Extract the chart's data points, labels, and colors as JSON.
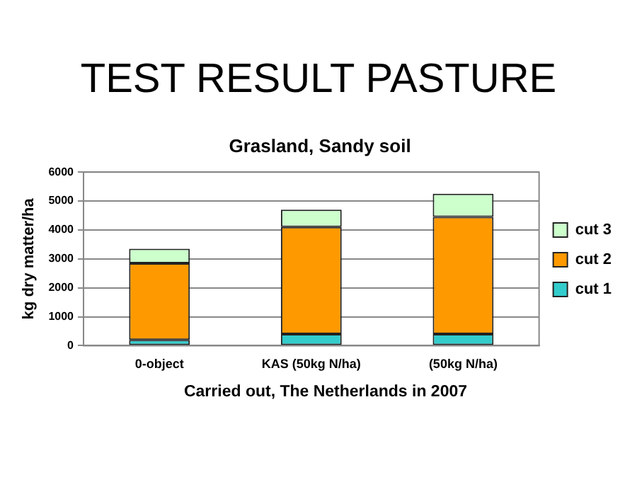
{
  "chart_data": {
    "type": "bar",
    "title": "TEST RESULT PASTURE",
    "subtitle": "Grasland, Sandy soil",
    "ylabel": "kg dry matter/ha",
    "annotations": [
      "Carried out, The Netherlands in 2007"
    ],
    "categories": [
      "0-object",
      "KAS (50kg N/ha)",
      "(50kg N/ha)"
    ],
    "stacked": true,
    "series": [
      {
        "name": "cut 1",
        "color": "#33cccc",
        "values": [
          200,
          400,
          400
        ]
      },
      {
        "name": "cut 2",
        "color": "#ff9900",
        "values": [
          2650,
          3700,
          4050
        ]
      },
      {
        "name": "cut 3",
        "color": "#ccffcc",
        "values": [
          500,
          600,
          800
        ]
      }
    ],
    "ylim": [
      0,
      6000
    ],
    "yticks": [
      0,
      1000,
      2000,
      3000,
      4000,
      5000,
      6000
    ],
    "grid": "y",
    "legend": "right"
  }
}
